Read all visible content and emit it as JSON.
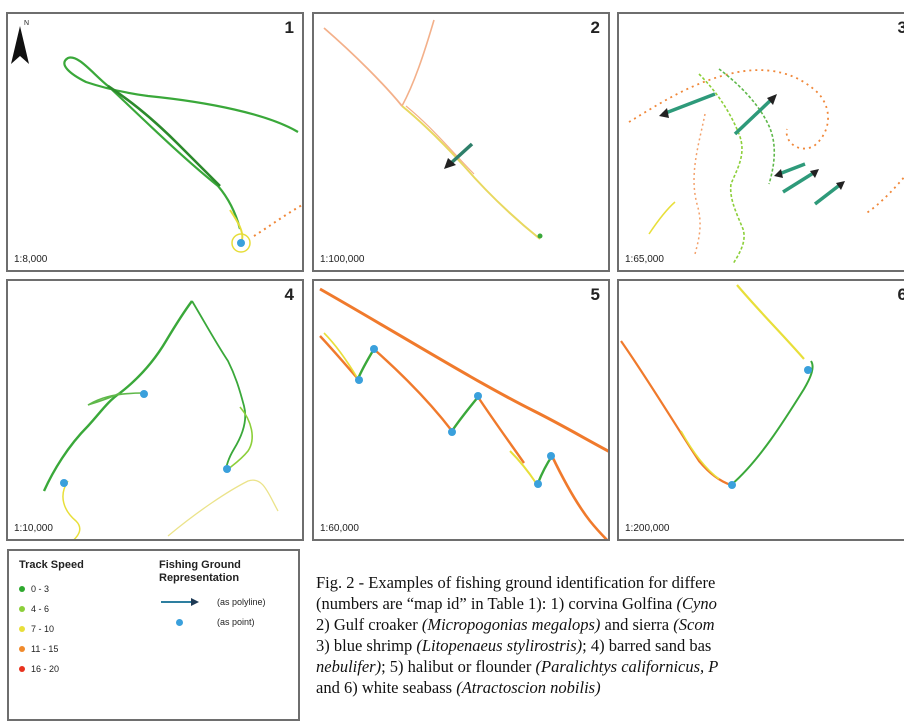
{
  "panels": [
    {
      "id": "1",
      "scale": "1:8,000",
      "north_label": "N"
    },
    {
      "id": "2",
      "scale": "1:100,000"
    },
    {
      "id": "3",
      "scale": "1:65,000"
    },
    {
      "id": "4",
      "scale": "1:10,000"
    },
    {
      "id": "5",
      "scale": "1:60,000"
    },
    {
      "id": "6",
      "scale": "1:200,000"
    }
  ],
  "legend": {
    "speed_title": "Track Speed",
    "speed_classes": [
      {
        "label": "0 - 3",
        "color": "#2ea82e"
      },
      {
        "label": "4 - 6",
        "color": "#8ccf3a"
      },
      {
        "label": "7 - 10",
        "color": "#e8df3a"
      },
      {
        "label": "11 - 15",
        "color": "#f08a2c"
      },
      {
        "label": "16 - 20",
        "color": "#e8321e"
      }
    ],
    "fishing_title_1": "Fishing Ground",
    "fishing_title_2": "Representation",
    "polyline_label": "(as polyline)",
    "point_label": "(as point)",
    "polyline_color": "#2e7fa0",
    "point_color": "#3aa0dc"
  },
  "caption": {
    "line1": "Fig. 2 - Examples of fishing ground identification for differe",
    "line2_a": "(numbers are “map id” in Table 1): 1) corvina Golfina ",
    "line2_b": "(Cyno",
    "line3_a": "2) Gulf croaker ",
    "line3_b": "(Micropogonias megalops)",
    "line3_c": " and sierra ",
    "line3_d": "(Scom",
    "line4_a": "3) blue shrimp ",
    "line4_b": "(Litopenaeus stylirostris)",
    "line4_c": "; 4) barred sand bas",
    "line5_a": "nebulifer)",
    "line5_b": "; 5) halibut or flounder ",
    "line5_c": "(Paralichtys californicus, P",
    "line6_a": "and 6) white seabass ",
    "line6_b": "(Atractoscion nobilis)"
  }
}
